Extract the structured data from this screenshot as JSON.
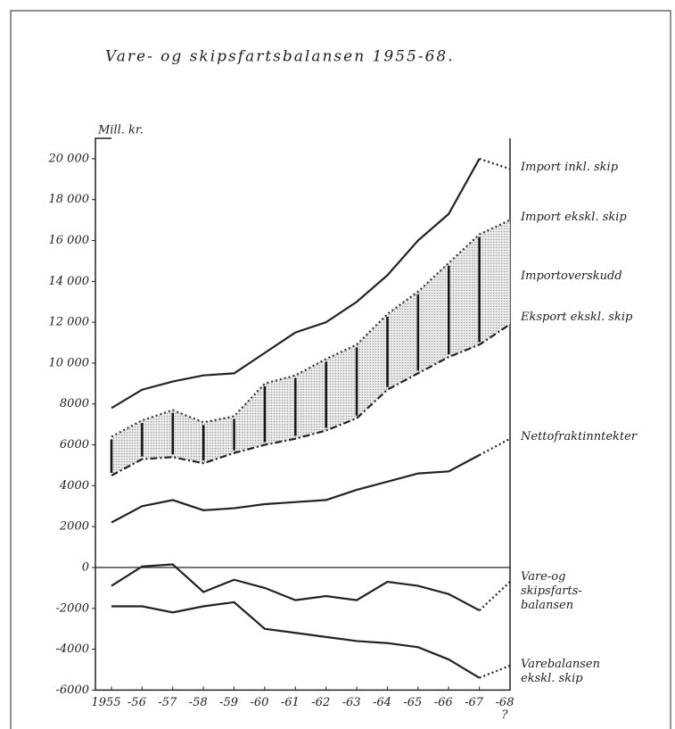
{
  "chart_data": {
    "type": "line",
    "title": "Vare- og skipsfartsbalansen 1955-68.",
    "y_label": "Mill. kr.",
    "categories": [
      "1955",
      "-56",
      "-57",
      "-58",
      "-59",
      "-60",
      "-61",
      "-62",
      "-63",
      "-64",
      "-65",
      "-66",
      "-67",
      "-68"
    ],
    "x_note": "?",
    "area_label": "Importoverskudd",
    "series": [
      {
        "name": "Import inkl. skip",
        "color": "#222222",
        "dash": "solid-dotted-last",
        "values": [
          7800,
          8700,
          9100,
          9400,
          9500,
          10500,
          11500,
          12000,
          13000,
          14300,
          16000,
          17300,
          20000,
          19500
        ]
      },
      {
        "name": "Import ekskl. skip",
        "color": "#333333",
        "dash": "dotted",
        "values": [
          6400,
          7200,
          7700,
          7100,
          7400,
          9000,
          9400,
          10200,
          10900,
          12400,
          13500,
          14900,
          16300,
          17000
        ]
      },
      {
        "name": "Eksport ekskl. skip",
        "color": "#222222",
        "dash": "dashdot",
        "values": [
          4500,
          5300,
          5400,
          5100,
          5600,
          6000,
          6300,
          6700,
          7300,
          8700,
          9500,
          10300,
          10900,
          11900
        ]
      },
      {
        "name": "Nettofraktinntekter",
        "color": "#222222",
        "dash": "solid-dotted-last",
        "values": [
          2200,
          3000,
          3300,
          2800,
          2900,
          3100,
          3200,
          3300,
          3800,
          4200,
          4600,
          4700,
          5500,
          6300
        ]
      },
      {
        "name": "Vare-og skipsfarts-balansen",
        "color": "#222222",
        "dash": "solid-dotted-last",
        "values": [
          -900,
          50,
          150,
          -1200,
          -600,
          -1000,
          -1600,
          -1400,
          -1600,
          -700,
          -900,
          -1300,
          -2100,
          -700
        ]
      },
      {
        "name": "Varebalansen ekskl. skip",
        "color": "#222222",
        "dash": "solid-dotted-last",
        "values": [
          -1900,
          -1900,
          -2200,
          -1900,
          -1700,
          -3000,
          -3200,
          -3400,
          -3600,
          -3700,
          -3900,
          -4500,
          -5400,
          -4800
        ]
      }
    ],
    "ylim": [
      -6000,
      21000
    ],
    "yticks": [
      {
        "value": 20000,
        "label": "20 000"
      },
      {
        "value": 18000,
        "label": "18 000"
      },
      {
        "value": 16000,
        "label": "16 000"
      },
      {
        "value": 14000,
        "label": "14 000"
      },
      {
        "value": 12000,
        "label": "12 000"
      },
      {
        "value": 10000,
        "label": "10 000"
      },
      8000,
      6000,
      4000,
      2000,
      0,
      -2000,
      -4000,
      -6000
    ]
  }
}
